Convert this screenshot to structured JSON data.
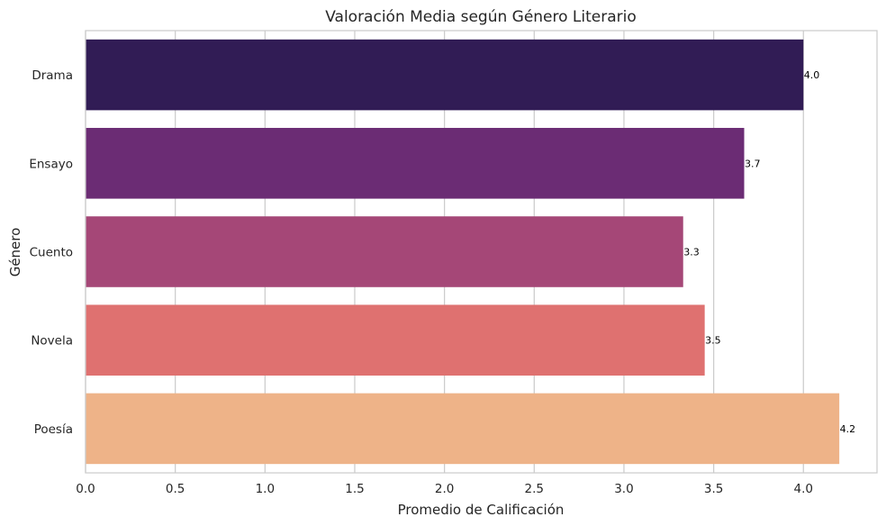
{
  "chart_data": {
    "type": "bar",
    "orientation": "horizontal",
    "title": "Valoración Media según Género Literario",
    "xlabel": "Promedio de Calificación",
    "ylabel": "Género",
    "categories": [
      "Drama",
      "Ensayo",
      "Cuento",
      "Novela",
      "Poesía"
    ],
    "values": [
      4.0,
      3.67,
      3.33,
      3.45,
      4.2
    ],
    "data_labels": [
      "4.0",
      "3.7",
      "3.3",
      "3.5",
      "4.2"
    ],
    "xlim": [
      0,
      4.41
    ],
    "xticks": [
      0.0,
      0.5,
      1.0,
      1.5,
      2.0,
      2.5,
      3.0,
      3.5,
      4.0
    ],
    "xtick_labels": [
      "0.0",
      "0.5",
      "1.0",
      "1.5",
      "2.0",
      "2.5",
      "3.0",
      "3.5",
      "4.0"
    ],
    "grid": true,
    "legend": "none",
    "colors": [
      "#311c55",
      "#6b2c74",
      "#a54777",
      "#df7170",
      "#eeb388"
    ]
  }
}
